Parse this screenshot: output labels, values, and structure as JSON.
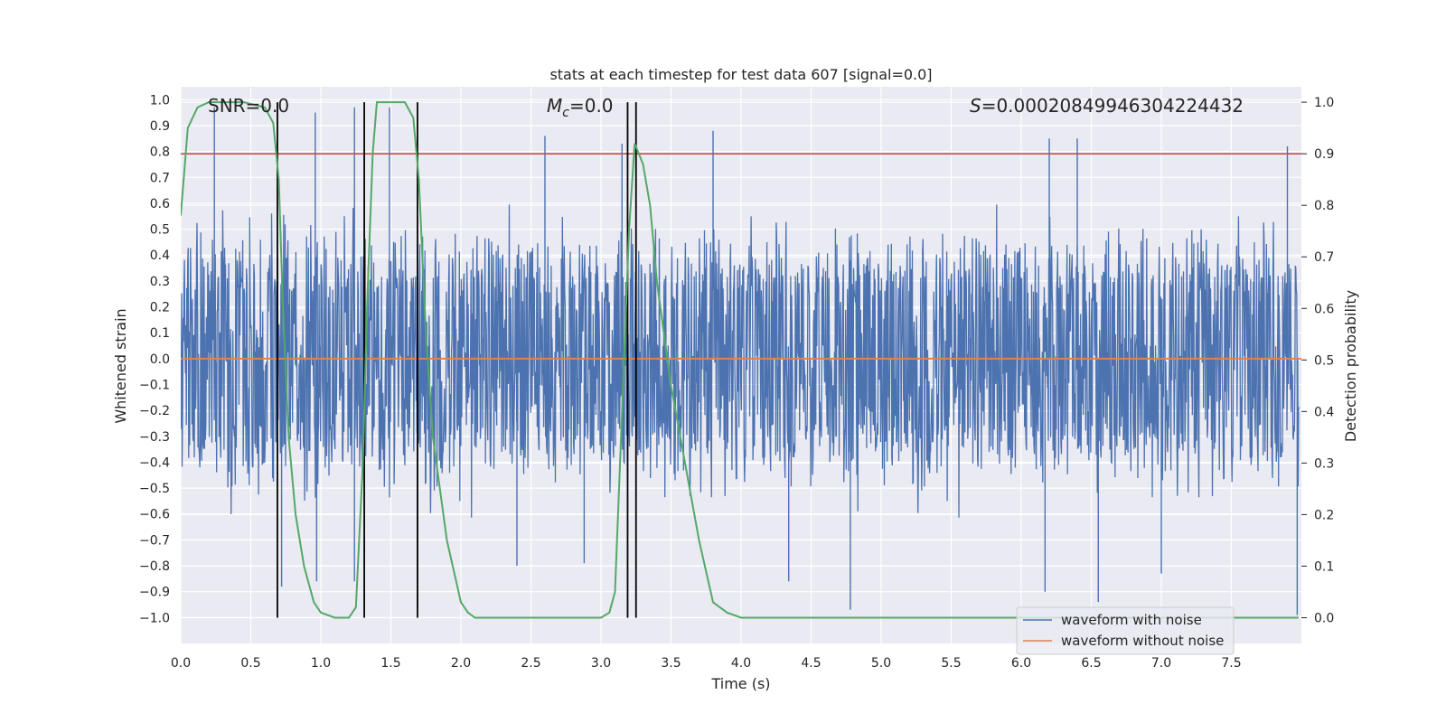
{
  "chart_data": {
    "type": "line",
    "title": "stats at each timestep for test data 607 [signal=0.0]",
    "xlabel": "Time (s)",
    "ylabel": "Whitened strain",
    "ylabel_right": "Detection probability",
    "xlim": [
      0.0,
      8.0
    ],
    "ylim": [
      -1.1,
      1.05
    ],
    "ylim_right": [
      -0.05,
      1.03
    ],
    "xticks": [
      "0.0",
      "0.5",
      "1.0",
      "1.5",
      "2.0",
      "2.5",
      "3.0",
      "3.5",
      "4.0",
      "4.5",
      "5.0",
      "5.5",
      "6.0",
      "6.5",
      "7.0",
      "7.5"
    ],
    "yticks": [
      "1.0",
      "0.9",
      "0.8",
      "0.7",
      "0.6",
      "0.5",
      "0.4",
      "0.3",
      "0.2",
      "0.1",
      "0.0",
      "-0.1",
      "-0.2",
      "-0.3",
      "-0.4",
      "-0.5",
      "-0.6",
      "-0.7",
      "-0.8",
      "-0.9",
      "-1.0"
    ],
    "yticks_right": [
      "1.0",
      "0.9",
      "0.8",
      "0.7",
      "0.6",
      "0.5",
      "0.4",
      "0.3",
      "0.2",
      "0.1",
      "0.0"
    ],
    "grid": true,
    "legend_position": "lower-right",
    "annotations": {
      "snr": "SNR=0.0",
      "mc_symbol": "M",
      "mc_sub": "c",
      "mc_value": "=0.0",
      "s_symbol": "S",
      "s_value": "=0.00020849946304224432"
    },
    "threshold_right": 0.9,
    "vertical_lines_x": [
      0.69,
      1.31,
      1.69,
      3.19,
      3.25
    ],
    "series": [
      {
        "name": "waveform with noise",
        "color": "#4c72b0",
        "envelope_note": "dense noise roughly spanning -0.6 to 0.6 with spikes up to about 0.97 and down to -1.0",
        "peaks_upper": [
          [
            0.24,
            0.97
          ],
          [
            0.96,
            0.95
          ],
          [
            1.24,
            0.97
          ],
          [
            1.49,
            0.97
          ],
          [
            2.6,
            0.86
          ],
          [
            3.15,
            0.83
          ],
          [
            3.8,
            0.88
          ],
          [
            6.2,
            0.85
          ],
          [
            6.4,
            0.85
          ],
          [
            7.9,
            0.82
          ]
        ],
        "peaks_lower": [
          [
            0.72,
            -0.88
          ],
          [
            0.97,
            -0.86
          ],
          [
            1.24,
            -0.86
          ],
          [
            1.69,
            -0.96
          ],
          [
            2.4,
            -0.8
          ],
          [
            2.88,
            -0.79
          ],
          [
            4.34,
            -0.86
          ],
          [
            4.78,
            -0.97
          ],
          [
            6.17,
            -0.9
          ],
          [
            6.55,
            -0.94
          ],
          [
            7.0,
            -0.83
          ],
          [
            7.97,
            -0.99
          ]
        ]
      },
      {
        "name": "waveform without noise",
        "color": "#dd8452",
        "constant_value": 0.0
      },
      {
        "name": "",
        "color": "#55a868",
        "axis": "right",
        "x": [
          0.0,
          0.05,
          0.12,
          0.2,
          0.3,
          0.45,
          0.6,
          0.66,
          0.7,
          0.73,
          0.77,
          0.82,
          0.88,
          0.95,
          1.0,
          1.1,
          1.2,
          1.25,
          1.3,
          1.33,
          1.37,
          1.4,
          1.5,
          1.6,
          1.66,
          1.7,
          1.75,
          1.8,
          1.9,
          2.0,
          2.05,
          2.1,
          2.3,
          2.6,
          2.8,
          3.0,
          3.06,
          3.1,
          3.15,
          3.2,
          3.24,
          3.27,
          3.3,
          3.35,
          3.4,
          3.5,
          3.6,
          3.7,
          3.8,
          3.9,
          4.0,
          5.0,
          6.0,
          7.0,
          7.98
        ],
        "y": [
          0.78,
          0.95,
          0.99,
          1.0,
          1.0,
          1.0,
          0.99,
          0.96,
          0.85,
          0.6,
          0.35,
          0.2,
          0.1,
          0.03,
          0.01,
          0.0,
          0.0,
          0.02,
          0.3,
          0.6,
          0.9,
          1.0,
          1.0,
          1.0,
          0.97,
          0.85,
          0.55,
          0.35,
          0.15,
          0.03,
          0.01,
          0.0,
          0.0,
          0.0,
          0.0,
          0.0,
          0.01,
          0.05,
          0.4,
          0.75,
          0.92,
          0.9,
          0.88,
          0.8,
          0.65,
          0.45,
          0.3,
          0.15,
          0.03,
          0.01,
          0.0,
          0.0,
          0.0,
          0.0,
          0.0
        ]
      }
    ]
  },
  "colors": {
    "plot_background": "#eaeaf2",
    "grid": "#ffffff",
    "noise": "#4c72b0",
    "clean": "#dd8452",
    "probability": "#55a868",
    "threshold": "#c44e52",
    "vertical_lines": "#000000"
  }
}
